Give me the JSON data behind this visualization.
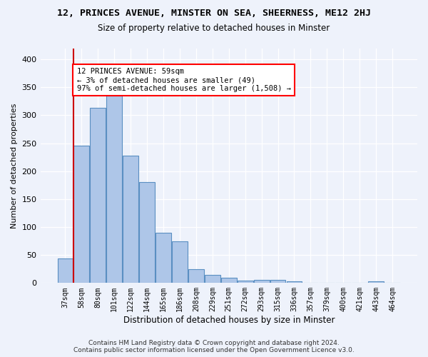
{
  "title1": "12, PRINCES AVENUE, MINSTER ON SEA, SHEERNESS, ME12 2HJ",
  "title2": "Size of property relative to detached houses in Minster",
  "xlabel": "Distribution of detached houses by size in Minster",
  "ylabel": "Number of detached properties",
  "footer1": "Contains HM Land Registry data © Crown copyright and database right 2024.",
  "footer2": "Contains public sector information licensed under the Open Government Licence v3.0.",
  "bin_labels": [
    "37sqm",
    "58sqm",
    "80sqm",
    "101sqm",
    "122sqm",
    "144sqm",
    "165sqm",
    "186sqm",
    "208sqm",
    "229sqm",
    "251sqm",
    "272sqm",
    "293sqm",
    "315sqm",
    "336sqm",
    "357sqm",
    "379sqm",
    "400sqm",
    "421sqm",
    "443sqm",
    "464sqm"
  ],
  "bar_values": [
    44,
    246,
    313,
    335,
    228,
    180,
    90,
    75,
    25,
    15,
    9,
    4,
    5,
    5,
    3,
    0,
    0,
    0,
    0,
    3,
    0
  ],
  "bar_color": "#aec6e8",
  "bar_edge_color": "#5a8fc2",
  "property_bin_index": 1,
  "annotation_line1": "12 PRINCES AVENUE: 59sqm",
  "annotation_line2": "← 3% of detached houses are smaller (49)",
  "annotation_line3": "97% of semi-detached houses are larger (1,508) →",
  "annotation_box_color": "white",
  "annotation_box_edge_color": "red",
  "red_line_color": "#cc0000",
  "ylim": [
    0,
    420
  ],
  "background_color": "#eef2fb"
}
